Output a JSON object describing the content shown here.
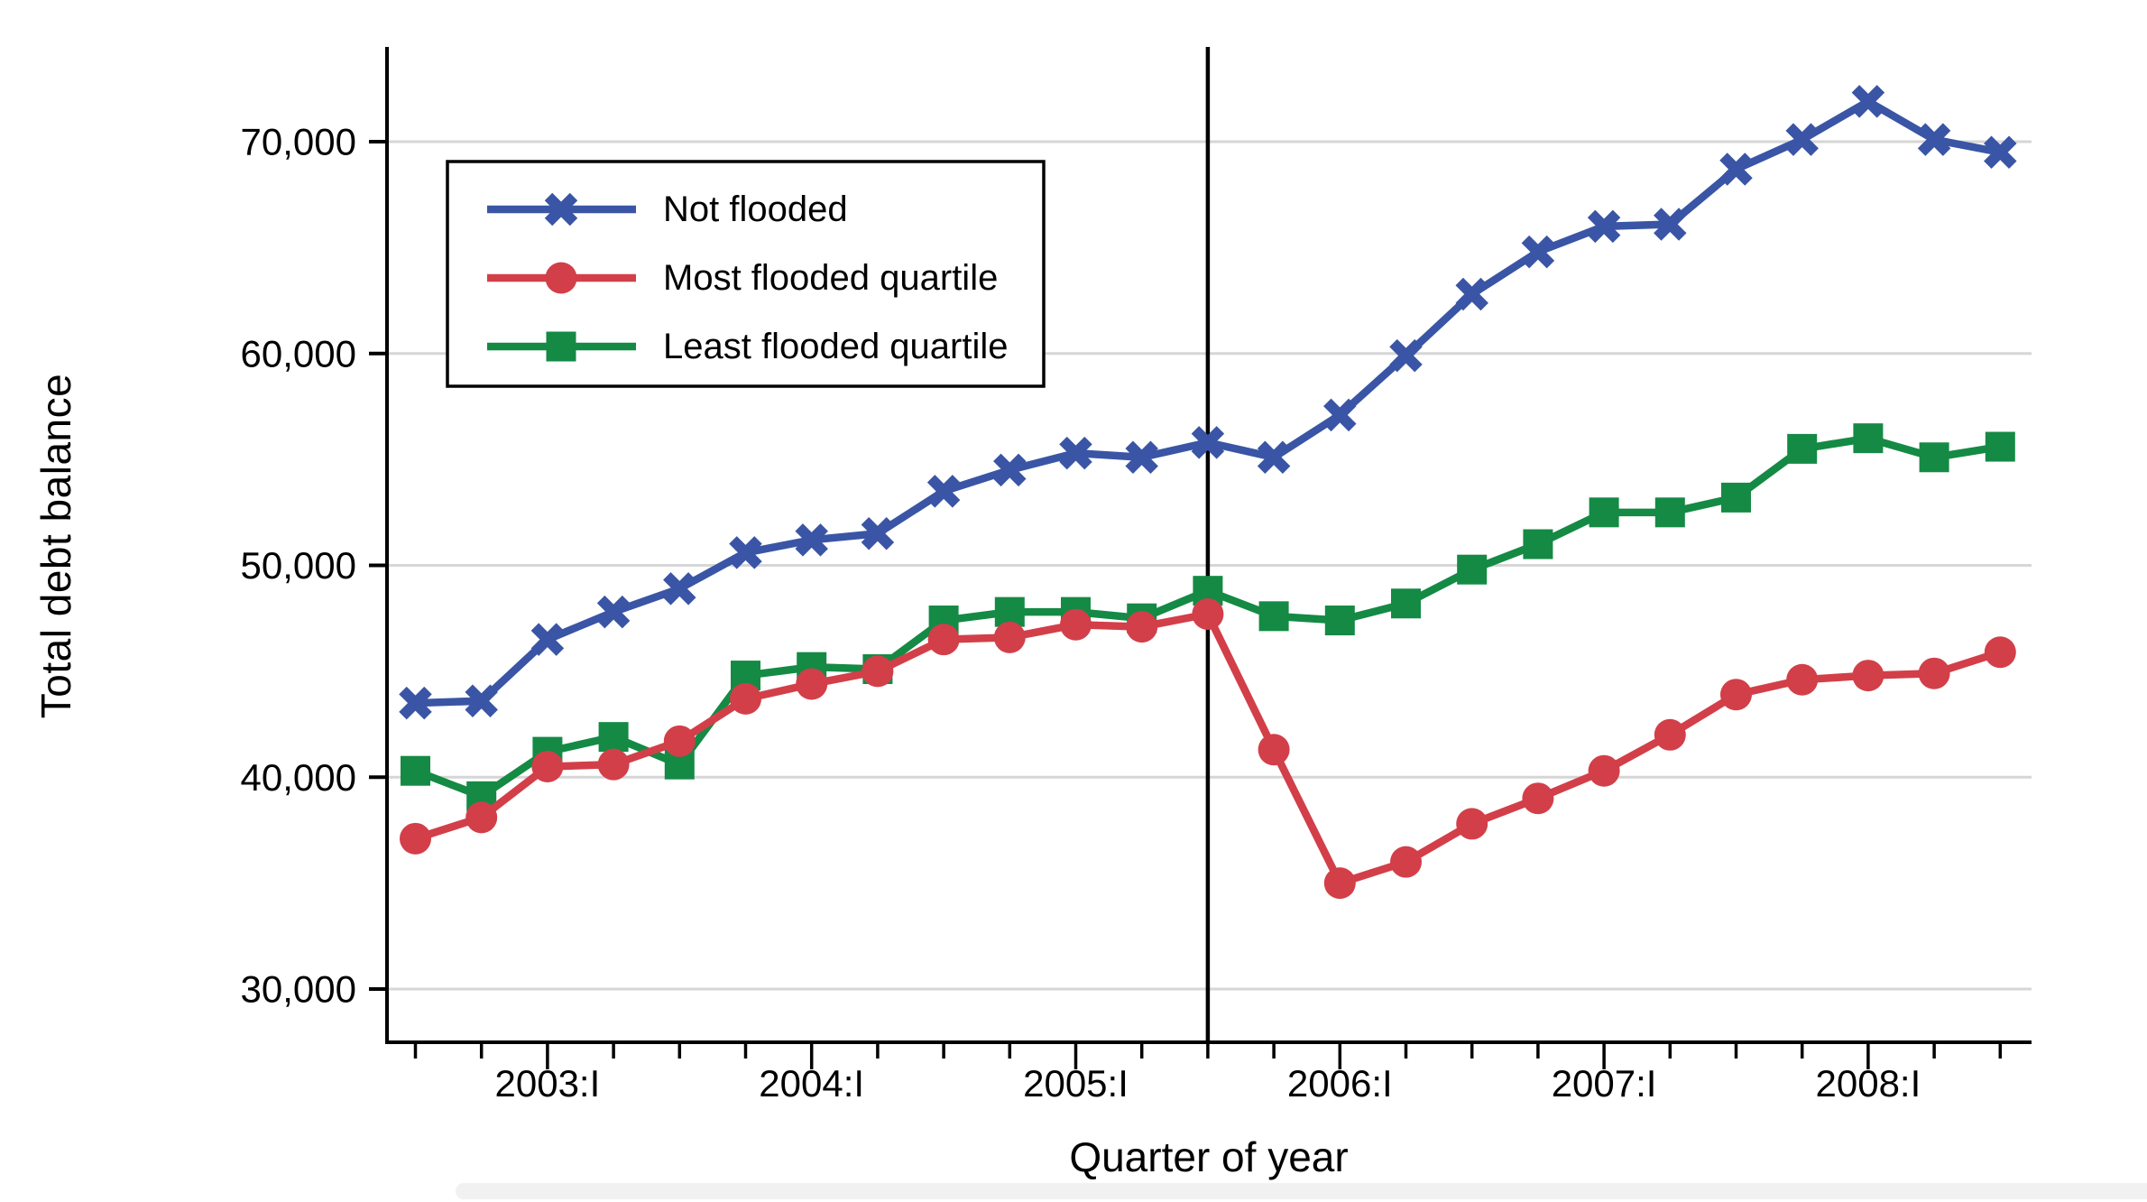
{
  "figure": {
    "background_color": "#ffffff",
    "axis_color": "#000000",
    "gridline_color": "#d6d6d6",
    "reference_line_color": "#000000"
  },
  "legend": {
    "position": "upper-left",
    "border_color": "#000000",
    "items": [
      {
        "label": "Not flooded",
        "marker": "x-marker-icon",
        "color": "#3a55a5"
      },
      {
        "label": "Most flooded quartile",
        "marker": "circle-marker-icon",
        "color": "#d23f49"
      },
      {
        "label": "Least flooded quartile",
        "marker": "square-marker-icon",
        "color": "#148a45"
      }
    ]
  },
  "chart_data": {
    "type": "line",
    "title": "",
    "xlabel": "Quarter of year",
    "ylabel": "Total debt balance",
    "grid": "horizontal",
    "legend_position": "upper-left",
    "ylim": [
      27500,
      74350
    ],
    "y_ticks": [
      {
        "value": 30000,
        "label": "30,000"
      },
      {
        "value": 40000,
        "label": "40,000"
      },
      {
        "value": 50000,
        "label": "50,000"
      },
      {
        "value": 60000,
        "label": "60,000"
      },
      {
        "value": 70000,
        "label": "70,000"
      }
    ],
    "categories": [
      "2002:III",
      "2002:IV",
      "2003:I",
      "2003:II",
      "2003:III",
      "2003:IV",
      "2004:I",
      "2004:II",
      "2004:III",
      "2004:IV",
      "2005:I",
      "2005:II",
      "2005:III",
      "2005:IV",
      "2006:I",
      "2006:II",
      "2006:III",
      "2006:IV",
      "2007:I",
      "2007:II",
      "2007:III",
      "2007:IV",
      "2008:I",
      "2008:II",
      "2008:III"
    ],
    "x_major_tick_labels": [
      "2003:I",
      "2004:I",
      "2005:I",
      "2006:I",
      "2007:I",
      "2008:I"
    ],
    "x_major_tick_indices": [
      2,
      6,
      10,
      14,
      18,
      22
    ],
    "reference_line": {
      "at_category": "2005:III",
      "at_index": 12,
      "orientation": "vertical"
    },
    "series": [
      {
        "name": "Not flooded",
        "color": "#3a55a5",
        "marker": "x",
        "values": [
          43500,
          43600,
          46500,
          47800,
          48900,
          50600,
          51200,
          51500,
          53500,
          54500,
          55300,
          55100,
          55800,
          55100,
          57100,
          59900,
          62800,
          64800,
          66000,
          66100,
          68700,
          70100,
          71900,
          70100,
          69500
        ]
      },
      {
        "name": "Most flooded quartile",
        "color": "#d23f49",
        "marker": "circle",
        "values": [
          37100,
          38100,
          40500,
          40600,
          41700,
          43700,
          44400,
          45000,
          46500,
          46600,
          47200,
          47100,
          47700,
          41300,
          35000,
          36000,
          37800,
          39000,
          40300,
          42000,
          43900,
          44600,
          44800,
          44900,
          45900
        ]
      },
      {
        "name": "Least flooded quartile",
        "color": "#148a45",
        "marker": "square",
        "values": [
          40300,
          39100,
          41200,
          41900,
          40600,
          44800,
          45200,
          45100,
          47400,
          47800,
          47800,
          47500,
          48800,
          47600,
          47400,
          48200,
          49800,
          51000,
          52500,
          52500,
          53200,
          55500,
          56000,
          55100,
          55600
        ]
      }
    ]
  }
}
